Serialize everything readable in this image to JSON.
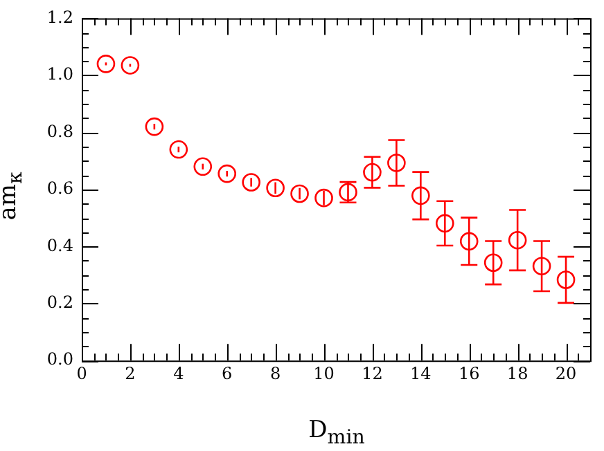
{
  "chart_data": {
    "type": "scatter",
    "xlabel": "D$_{min}$",
    "ylabel": "am$_{κ}$",
    "x": [
      1,
      2,
      3,
      4,
      5,
      6,
      7,
      8,
      9,
      10,
      11,
      12,
      13,
      14,
      15,
      16,
      17,
      18,
      19,
      20
    ],
    "series": [
      {
        "color": "#ff0000",
        "values": [
          1.04,
          1.035,
          0.82,
          0.74,
          0.68,
          0.655,
          0.625,
          0.605,
          0.585,
          0.57,
          0.59,
          0.66,
          0.693,
          0.578,
          0.481,
          0.418,
          0.343,
          0.422,
          0.331,
          0.283
        ],
        "errors": [
          0.005,
          0.005,
          0.01,
          0.01,
          0.01,
          0.01,
          0.015,
          0.02,
          0.02,
          0.025,
          0.036,
          0.054,
          0.08,
          0.083,
          0.078,
          0.083,
          0.076,
          0.106,
          0.088,
          0.081
        ]
      }
    ],
    "marker": "circle",
    "xlim": [
      0,
      21
    ],
    "xticks": [
      0,
      2,
      4,
      6,
      8,
      10,
      12,
      14,
      16,
      18,
      20
    ],
    "ylim": [
      0,
      1.2
    ],
    "yticks": [
      {
        "value": 0,
        "label": "0.0"
      },
      {
        "value": 0.2,
        "label": "0.2"
      },
      {
        "value": 0.4,
        "label": "0.4"
      },
      {
        "value": 0.6,
        "label": "0.6"
      },
      {
        "value": 0.8,
        "label": "0.8"
      },
      {
        "value": 1,
        "label": "1.0"
      },
      {
        "value": 1.2,
        "label": "1.2"
      }
    ],
    "grid": false,
    "legend": false
  }
}
